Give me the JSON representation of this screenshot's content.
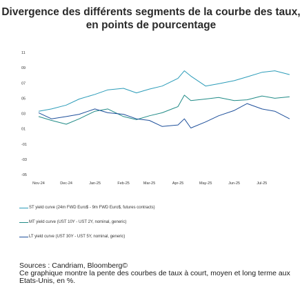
{
  "title": "Divergence des différents segments de la courbe des taux, en points de pourcentage",
  "colors": {
    "st": "#2a9bb8",
    "mt": "#1f8a86",
    "lt": "#1c4e9a",
    "axis": "#333333"
  },
  "chart_data": {
    "type": "line",
    "title": "Divergence des différents segments de la courbe des taux, en points de pourcentage",
    "xlabel": "",
    "ylabel": "",
    "ylim": [
      -0.5,
      1.1
    ],
    "y_ticks": [
      1.1,
      0.9,
      0.7,
      0.5,
      0.3,
      0.1,
      -0.1,
      -0.3,
      -0.5
    ],
    "y_tick_labels": [
      "11",
      "09",
      "07",
      "05",
      "03",
      "01",
      "-01",
      "-03",
      "-05"
    ],
    "x_start": "2024-11-01",
    "x_end": "2025-07-31",
    "x_tick_labels": [
      "Nov-24",
      "Dec-24",
      "Jan-25",
      "Feb-25",
      "Mar-25",
      "Apr-25",
      "May-25",
      "Jun-25",
      "Jul-25"
    ],
    "x_ticks": [
      "2024-11-01",
      "2024-12-01",
      "2025-01-01",
      "2025-02-01",
      "2025-03-01",
      "2025-04-01",
      "2025-05-01",
      "2025-06-01",
      "2025-07-01"
    ],
    "series": [
      {
        "name": "ST yield curve (24m FWD Euro$ - 9m FWD Euro$, futures contracts)",
        "color_key": "st",
        "x": [
          "2024-11-01",
          "2024-11-15",
          "2024-12-01",
          "2024-12-15",
          "2025-01-01",
          "2025-01-15",
          "2025-02-01",
          "2025-02-15",
          "2025-03-01",
          "2025-03-15",
          "2025-04-01",
          "2025-04-08",
          "2025-04-15",
          "2025-05-01",
          "2025-05-15",
          "2025-06-01",
          "2025-06-15",
          "2025-07-01",
          "2025-07-15",
          "2025-07-31"
        ],
        "y": [
          0.33,
          0.36,
          0.41,
          0.49,
          0.55,
          0.61,
          0.63,
          0.57,
          0.62,
          0.66,
          0.76,
          0.86,
          0.79,
          0.66,
          0.69,
          0.73,
          0.78,
          0.84,
          0.86,
          0.81
        ]
      },
      {
        "name": "MT yield curve (UST 10Y - UST 2Y, nominal, generic)",
        "color_key": "mt",
        "x": [
          "2024-11-01",
          "2024-11-15",
          "2024-12-01",
          "2024-12-15",
          "2025-01-01",
          "2025-01-15",
          "2025-02-01",
          "2025-02-15",
          "2025-03-01",
          "2025-03-15",
          "2025-04-01",
          "2025-04-08",
          "2025-04-15",
          "2025-05-01",
          "2025-05-15",
          "2025-06-01",
          "2025-06-15",
          "2025-07-01",
          "2025-07-15",
          "2025-07-31"
        ],
        "y": [
          0.26,
          0.21,
          0.16,
          0.23,
          0.33,
          0.36,
          0.26,
          0.22,
          0.27,
          0.31,
          0.39,
          0.54,
          0.47,
          0.49,
          0.51,
          0.47,
          0.48,
          0.53,
          0.5,
          0.52
        ]
      },
      {
        "name": "LT yield curve (UST 30Y - UST 5Y, nominal, generic)",
        "color_key": "lt",
        "x": [
          "2024-11-01",
          "2024-11-15",
          "2024-12-01",
          "2024-12-15",
          "2025-01-01",
          "2025-01-15",
          "2025-02-01",
          "2025-02-15",
          "2025-03-01",
          "2025-03-15",
          "2025-04-01",
          "2025-04-08",
          "2025-04-15",
          "2025-05-01",
          "2025-05-15",
          "2025-06-01",
          "2025-06-15",
          "2025-07-01",
          "2025-07-15",
          "2025-07-31"
        ],
        "y": [
          0.31,
          0.23,
          0.26,
          0.29,
          0.36,
          0.31,
          0.29,
          0.23,
          0.21,
          0.13,
          0.15,
          0.23,
          0.11,
          0.19,
          0.27,
          0.34,
          0.43,
          0.36,
          0.33,
          0.23
        ]
      }
    ]
  },
  "legend": [
    {
      "label": "ST yield curve (24m FWD Euro$ - 9m FWD Euro$, futures contracts)",
      "color_key": "st"
    },
    {
      "label": "MT yield curve (UST 10Y - UST 2Y, nominal, generic)",
      "color_key": "mt"
    },
    {
      "label": "LT yield curve (UST 30Y - UST 5Y, nominal, generic)",
      "color_key": "lt"
    }
  ],
  "sources": "Sources : Candriam, Bloomberg©",
  "note": "Ce graphique montre la pente des courbes de taux à court, moyen et long terme aux Etats-Unis, en %."
}
